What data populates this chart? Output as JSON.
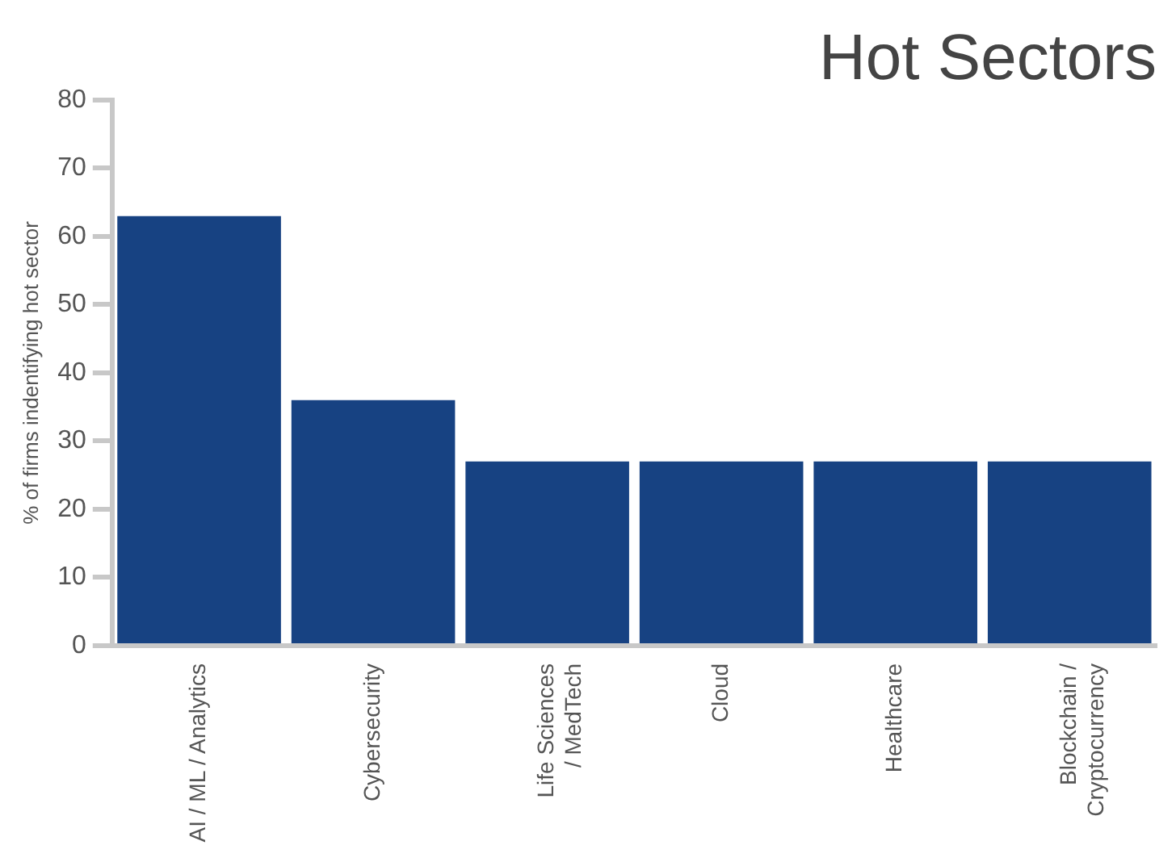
{
  "chart_data": {
    "type": "bar",
    "title": "Hot Sectors",
    "ylabel": "% of firms indentifying hot sector",
    "categories": [
      "AI / ML / Analytics",
      "Cybersecurity",
      "Life Sciences\n/ MedTech",
      "Cloud",
      "Healthcare",
      "Blockchain /\nCryptocurrency"
    ],
    "values": [
      63,
      36,
      27,
      27,
      27,
      27
    ],
    "color": "#174282",
    "ylim": [
      0,
      80
    ],
    "yticks": [
      0,
      10,
      20,
      30,
      40,
      50,
      60,
      70,
      80
    ],
    "grid": false,
    "legend": false
  }
}
